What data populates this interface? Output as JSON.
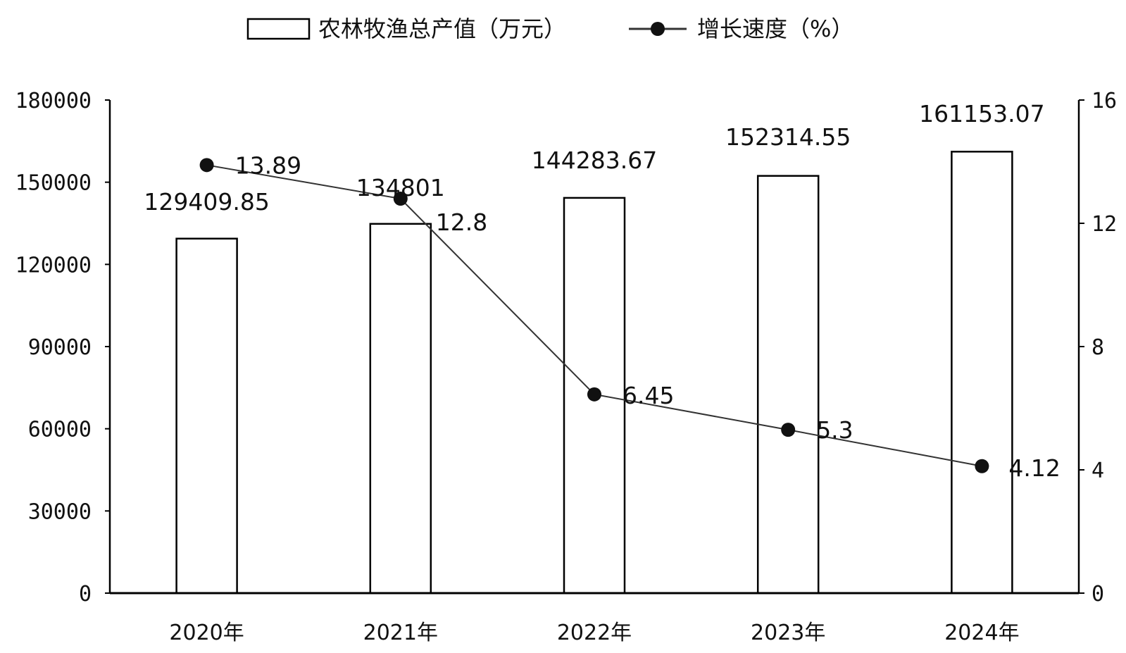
{
  "chart_data": {
    "type": "bar",
    "categories": [
      "2020年",
      "2021年",
      "2022年",
      "2023年",
      "2024年"
    ],
    "series": [
      {
        "name": "农林牧渔总产值（万元）",
        "type": "bar",
        "axis": "left",
        "values": [
          129409.85,
          134801,
          144283.67,
          152314.55,
          161153.07
        ],
        "labels": [
          "129409.85",
          "134801",
          "144283.67",
          "152314.55",
          "161153.07"
        ]
      },
      {
        "name": "增长速度（%）",
        "type": "line",
        "axis": "right",
        "values": [
          13.89,
          12.8,
          6.45,
          5.3,
          4.12
        ],
        "labels": [
          "13.89",
          "12.8",
          "6.45",
          "5.3",
          "4.12"
        ]
      }
    ],
    "y_left": {
      "min": 0,
      "max": 180000,
      "ticks": [
        0,
        30000,
        60000,
        90000,
        120000,
        150000,
        180000
      ],
      "tick_labels": [
        "0",
        "30000",
        "60000",
        "90000",
        "120000",
        "150000",
        "180000"
      ]
    },
    "y_right": {
      "min": 0,
      "max": 16,
      "ticks": [
        0,
        4,
        8,
        12,
        16
      ],
      "tick_labels": [
        "0",
        "4",
        "8",
        "12",
        "16"
      ]
    },
    "grid": false,
    "legend": "top-center",
    "colors": {
      "bar_fill": "#ffffff",
      "bar_stroke": "#000000",
      "line": "#333333",
      "marker": "#111111"
    }
  }
}
